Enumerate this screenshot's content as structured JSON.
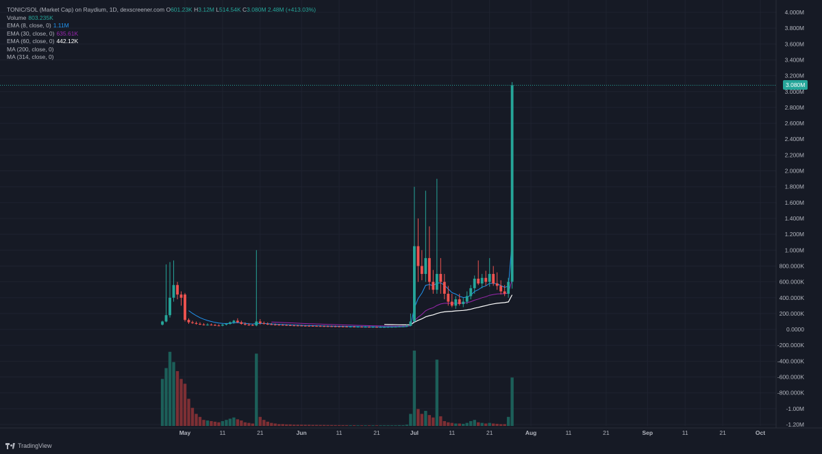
{
  "legend": {
    "title": "TONIC/SOL (Market Cap) on Raydium, 1D, dexscreener.com",
    "ohlc": [
      {
        "k": "O",
        "v": "601.23K"
      },
      {
        "k": "H",
        "v": "3.12M"
      },
      {
        "k": "L",
        "v": "514.54K"
      },
      {
        "k": "C",
        "v": "3.080M"
      }
    ],
    "change": "2.48M (+413.03%)",
    "indicators": [
      {
        "label": "Volume",
        "value": "803.235K",
        "color": "#26a69a"
      },
      {
        "label": "EMA (8, close, 0)",
        "value": "1.11M",
        "color": "#2196f3"
      },
      {
        "label": "EMA (30, close, 0)",
        "value": "635.61K",
        "color": "#9c27b0"
      },
      {
        "label": "EMA (60, close, 0)",
        "value": "442.12K",
        "color": "#ffffff"
      },
      {
        "label": "MA (200, close, 0)",
        "value": "",
        "color": "#b2b5be"
      },
      {
        "label": "MA (314, close, 0)",
        "value": "",
        "color": "#b2b5be"
      }
    ]
  },
  "last_price_tag": "3.080M",
  "brand": "TradingView",
  "colors": {
    "up": "#26a69a",
    "down": "#ef5350",
    "background": "#161a25",
    "grid": "#1f2330"
  },
  "chart_data": {
    "type": "candlestick",
    "y_unit": "market cap (USD)",
    "ylim": [
      -1200000,
      4000000
    ],
    "y_ticks": [
      "4.000M",
      "3.800M",
      "3.600M",
      "3.400M",
      "3.200M",
      "3.000M",
      "2.800M",
      "2.600M",
      "2.400M",
      "2.200M",
      "2.000M",
      "1.800M",
      "1.600M",
      "1.400M",
      "1.200M",
      "1.000M",
      "800.000K",
      "600.000K",
      "400.000K",
      "200.000K",
      "0.0000",
      "-200.000K",
      "-400.000K",
      "-600.000K",
      "-800.000K",
      "-1.00M",
      "-1.20M"
    ],
    "x_ticks": [
      {
        "label": "May",
        "date": "2024-05-01"
      },
      {
        "label": "11",
        "date": "2024-05-11"
      },
      {
        "label": "21",
        "date": "2024-05-21"
      },
      {
        "label": "Jun",
        "date": "2024-06-01"
      },
      {
        "label": "11",
        "date": "2024-06-11"
      },
      {
        "label": "21",
        "date": "2024-06-21"
      },
      {
        "label": "Jul",
        "date": "2024-07-01"
      },
      {
        "label": "11",
        "date": "2024-07-11"
      },
      {
        "label": "21",
        "date": "2024-07-21"
      },
      {
        "label": "Aug",
        "date": "2024-08-01"
      },
      {
        "label": "11",
        "date": "2024-08-11"
      },
      {
        "label": "21",
        "date": "2024-08-21"
      },
      {
        "label": "Sep",
        "date": "2024-09-01"
      },
      {
        "label": "11",
        "date": "2024-09-11"
      },
      {
        "label": "21",
        "date": "2024-09-21"
      },
      {
        "label": "Oct",
        "date": "2024-10-01"
      }
    ],
    "candles": [
      {
        "date": "2024-04-25",
        "o": 60000,
        "h": 110000,
        "l": 50000,
        "c": 100000,
        "v": 780000
      },
      {
        "date": "2024-04-26",
        "o": 100000,
        "h": 820000,
        "l": 90000,
        "c": 180000,
        "v": 960000
      },
      {
        "date": "2024-04-27",
        "o": 180000,
        "h": 850000,
        "l": 150000,
        "c": 400000,
        "v": 1230000
      },
      {
        "date": "2024-04-28",
        "o": 400000,
        "h": 870000,
        "l": 350000,
        "c": 560000,
        "v": 1060000
      },
      {
        "date": "2024-04-29",
        "o": 560000,
        "h": 600000,
        "l": 380000,
        "c": 440000,
        "v": 910000
      },
      {
        "date": "2024-04-30",
        "o": 440000,
        "h": 480000,
        "l": 300000,
        "c": 400000,
        "v": 780000
      },
      {
        "date": "2024-05-01",
        "o": 440000,
        "h": 460000,
        "l": 100000,
        "c": 120000,
        "v": 700000
      },
      {
        "date": "2024-05-02",
        "o": 120000,
        "h": 140000,
        "l": 70000,
        "c": 90000,
        "v": 450000
      },
      {
        "date": "2024-05-03",
        "o": 90000,
        "h": 110000,
        "l": 70000,
        "c": 80000,
        "v": 300000
      },
      {
        "date": "2024-05-04",
        "o": 80000,
        "h": 100000,
        "l": 60000,
        "c": 70000,
        "v": 200000
      },
      {
        "date": "2024-05-05",
        "o": 70000,
        "h": 90000,
        "l": 55000,
        "c": 62000,
        "v": 150000
      },
      {
        "date": "2024-05-06",
        "o": 62000,
        "h": 80000,
        "l": 50000,
        "c": 58000,
        "v": 100000
      },
      {
        "date": "2024-05-07",
        "o": 58000,
        "h": 78000,
        "l": 48000,
        "c": 60000,
        "v": 90000
      },
      {
        "date": "2024-05-08",
        "o": 60000,
        "h": 75000,
        "l": 50000,
        "c": 55000,
        "v": 80000
      },
      {
        "date": "2024-05-09",
        "o": 55000,
        "h": 70000,
        "l": 45000,
        "c": 50000,
        "v": 70000
      },
      {
        "date": "2024-05-10",
        "o": 50000,
        "h": 65000,
        "l": 42000,
        "c": 48000,
        "v": 60000
      },
      {
        "date": "2024-05-11",
        "o": 48000,
        "h": 70000,
        "l": 40000,
        "c": 60000,
        "v": 80000
      },
      {
        "date": "2024-05-12",
        "o": 60000,
        "h": 80000,
        "l": 50000,
        "c": 70000,
        "v": 100000
      },
      {
        "date": "2024-05-13",
        "o": 70000,
        "h": 100000,
        "l": 60000,
        "c": 90000,
        "v": 120000
      },
      {
        "date": "2024-05-14",
        "o": 90000,
        "h": 120000,
        "l": 70000,
        "c": 110000,
        "v": 140000
      },
      {
        "date": "2024-05-15",
        "o": 110000,
        "h": 140000,
        "l": 80000,
        "c": 90000,
        "v": 110000
      },
      {
        "date": "2024-05-16",
        "o": 90000,
        "h": 110000,
        "l": 60000,
        "c": 70000,
        "v": 90000
      },
      {
        "date": "2024-05-17",
        "o": 70000,
        "h": 90000,
        "l": 50000,
        "c": 60000,
        "v": 60000
      },
      {
        "date": "2024-05-18",
        "o": 60000,
        "h": 80000,
        "l": 45000,
        "c": 55000,
        "v": 50000
      },
      {
        "date": "2024-05-19",
        "o": 55000,
        "h": 70000,
        "l": 45000,
        "c": 50000,
        "v": 40000
      },
      {
        "date": "2024-05-20",
        "o": 50000,
        "h": 1000000,
        "l": 40000,
        "c": 100000,
        "v": 1200000
      },
      {
        "date": "2024-05-21",
        "o": 100000,
        "h": 130000,
        "l": 60000,
        "c": 80000,
        "v": 150000
      },
      {
        "date": "2024-05-22",
        "o": 80000,
        "h": 100000,
        "l": 60000,
        "c": 70000,
        "v": 100000
      },
      {
        "date": "2024-05-23",
        "o": 70000,
        "h": 90000,
        "l": 55000,
        "c": 65000,
        "v": 70000
      },
      {
        "date": "2024-05-24",
        "o": 65000,
        "h": 80000,
        "l": 55000,
        "c": 60000,
        "v": 50000
      },
      {
        "date": "2024-05-25",
        "o": 60000,
        "h": 75000,
        "l": 50000,
        "c": 58000,
        "v": 40000
      },
      {
        "date": "2024-05-26",
        "o": 58000,
        "h": 70000,
        "l": 50000,
        "c": 56000,
        "v": 30000
      },
      {
        "date": "2024-05-27",
        "o": 56000,
        "h": 68000,
        "l": 48000,
        "c": 55000,
        "v": 30000
      },
      {
        "date": "2024-05-28",
        "o": 55000,
        "h": 66000,
        "l": 46000,
        "c": 52000,
        "v": 25000
      },
      {
        "date": "2024-05-29",
        "o": 52000,
        "h": 64000,
        "l": 44000,
        "c": 50000,
        "v": 25000
      },
      {
        "date": "2024-05-30",
        "o": 50000,
        "h": 62000,
        "l": 42000,
        "c": 49000,
        "v": 20000
      },
      {
        "date": "2024-05-31",
        "o": 49000,
        "h": 60000,
        "l": 40000,
        "c": 48000,
        "v": 20000
      },
      {
        "date": "2024-06-01",
        "o": 48000,
        "h": 58000,
        "l": 40000,
        "c": 46000,
        "v": 20000
      },
      {
        "date": "2024-06-02",
        "o": 46000,
        "h": 56000,
        "l": 38000,
        "c": 45000,
        "v": 18000
      },
      {
        "date": "2024-06-03",
        "o": 45000,
        "h": 55000,
        "l": 37000,
        "c": 44000,
        "v": 18000
      },
      {
        "date": "2024-06-04",
        "o": 44000,
        "h": 54000,
        "l": 36000,
        "c": 43000,
        "v": 16000
      },
      {
        "date": "2024-06-05",
        "o": 43000,
        "h": 53000,
        "l": 35000,
        "c": 42000,
        "v": 16000
      },
      {
        "date": "2024-06-06",
        "o": 42000,
        "h": 52000,
        "l": 34000,
        "c": 41000,
        "v": 15000
      },
      {
        "date": "2024-06-07",
        "o": 41000,
        "h": 51000,
        "l": 33000,
        "c": 40000,
        "v": 15000
      },
      {
        "date": "2024-06-08",
        "o": 40000,
        "h": 50000,
        "l": 32000,
        "c": 39000,
        "v": 14000
      },
      {
        "date": "2024-06-09",
        "o": 39000,
        "h": 49000,
        "l": 31000,
        "c": 38000,
        "v": 14000
      },
      {
        "date": "2024-06-10",
        "o": 38000,
        "h": 48000,
        "l": 30000,
        "c": 37000,
        "v": 13000
      },
      {
        "date": "2024-06-11",
        "o": 37000,
        "h": 47000,
        "l": 30000,
        "c": 36000,
        "v": 13000
      },
      {
        "date": "2024-06-12",
        "o": 36000,
        "h": 46000,
        "l": 29000,
        "c": 35000,
        "v": 12000
      },
      {
        "date": "2024-06-13",
        "o": 35000,
        "h": 45000,
        "l": 28000,
        "c": 34000,
        "v": 12000
      },
      {
        "date": "2024-06-14",
        "o": 34000,
        "h": 44000,
        "l": 28000,
        "c": 34000,
        "v": 11000
      },
      {
        "date": "2024-06-15",
        "o": 34000,
        "h": 44000,
        "l": 27000,
        "c": 33000,
        "v": 11000
      },
      {
        "date": "2024-06-16",
        "o": 33000,
        "h": 43000,
        "l": 27000,
        "c": 33000,
        "v": 10000
      },
      {
        "date": "2024-06-17",
        "o": 33000,
        "h": 42000,
        "l": 26000,
        "c": 32000,
        "v": 10000
      },
      {
        "date": "2024-06-18",
        "o": 32000,
        "h": 42000,
        "l": 26000,
        "c": 32000,
        "v": 10000
      },
      {
        "date": "2024-06-19",
        "o": 32000,
        "h": 41000,
        "l": 25000,
        "c": 31000,
        "v": 10000
      },
      {
        "date": "2024-06-20",
        "o": 31000,
        "h": 41000,
        "l": 25000,
        "c": 31000,
        "v": 10000
      },
      {
        "date": "2024-06-21",
        "o": 31000,
        "h": 40000,
        "l": 24000,
        "c": 30000,
        "v": 10000
      },
      {
        "date": "2024-06-22",
        "o": 30000,
        "h": 40000,
        "l": 24000,
        "c": 30000,
        "v": 10000
      },
      {
        "date": "2024-06-23",
        "o": 30000,
        "h": 40000,
        "l": 24000,
        "c": 30000,
        "v": 10000
      },
      {
        "date": "2024-06-24",
        "o": 30000,
        "h": 40000,
        "l": 24000,
        "c": 31000,
        "v": 10000
      },
      {
        "date": "2024-06-25",
        "o": 31000,
        "h": 41000,
        "l": 25000,
        "c": 32000,
        "v": 10000
      },
      {
        "date": "2024-06-26",
        "o": 32000,
        "h": 42000,
        "l": 26000,
        "c": 33000,
        "v": 10000
      },
      {
        "date": "2024-06-27",
        "o": 33000,
        "h": 44000,
        "l": 27000,
        "c": 35000,
        "v": 12000
      },
      {
        "date": "2024-06-28",
        "o": 35000,
        "h": 46000,
        "l": 28000,
        "c": 37000,
        "v": 12000
      },
      {
        "date": "2024-06-29",
        "o": 37000,
        "h": 60000,
        "l": 30000,
        "c": 45000,
        "v": 20000
      },
      {
        "date": "2024-06-30",
        "o": 45000,
        "h": 200000,
        "l": 40000,
        "c": 100000,
        "v": 200000
      },
      {
        "date": "2024-07-01",
        "o": 100000,
        "h": 1800000,
        "l": 90000,
        "c": 1050000,
        "v": 1250000
      },
      {
        "date": "2024-07-02",
        "o": 1050000,
        "h": 1400000,
        "l": 600000,
        "c": 800000,
        "v": 280000
      },
      {
        "date": "2024-07-03",
        "o": 800000,
        "h": 1000000,
        "l": 620000,
        "c": 700000,
        "v": 200000
      },
      {
        "date": "2024-07-04",
        "o": 700000,
        "h": 1750000,
        "l": 600000,
        "c": 900000,
        "v": 250000
      },
      {
        "date": "2024-07-05",
        "o": 900000,
        "h": 1300000,
        "l": 500000,
        "c": 600000,
        "v": 180000
      },
      {
        "date": "2024-07-06",
        "o": 600000,
        "h": 750000,
        "l": 450000,
        "c": 500000,
        "v": 140000
      },
      {
        "date": "2024-07-07",
        "o": 500000,
        "h": 1900000,
        "l": 450000,
        "c": 700000,
        "v": 1100000
      },
      {
        "date": "2024-07-08",
        "o": 700000,
        "h": 900000,
        "l": 450000,
        "c": 600000,
        "v": 160000
      },
      {
        "date": "2024-07-09",
        "o": 600000,
        "h": 700000,
        "l": 380000,
        "c": 450000,
        "v": 80000
      },
      {
        "date": "2024-07-10",
        "o": 450000,
        "h": 550000,
        "l": 300000,
        "c": 350000,
        "v": 60000
      },
      {
        "date": "2024-07-11",
        "o": 350000,
        "h": 450000,
        "l": 280000,
        "c": 300000,
        "v": 50000
      },
      {
        "date": "2024-07-12",
        "o": 300000,
        "h": 420000,
        "l": 260000,
        "c": 380000,
        "v": 40000
      },
      {
        "date": "2024-07-13",
        "o": 380000,
        "h": 450000,
        "l": 300000,
        "c": 320000,
        "v": 40000
      },
      {
        "date": "2024-07-14",
        "o": 320000,
        "h": 400000,
        "l": 280000,
        "c": 350000,
        "v": 35000
      },
      {
        "date": "2024-07-15",
        "o": 350000,
        "h": 480000,
        "l": 320000,
        "c": 420000,
        "v": 50000
      },
      {
        "date": "2024-07-16",
        "o": 420000,
        "h": 560000,
        "l": 380000,
        "c": 520000,
        "v": 80000
      },
      {
        "date": "2024-07-17",
        "o": 520000,
        "h": 680000,
        "l": 450000,
        "c": 640000,
        "v": 100000
      },
      {
        "date": "2024-07-18",
        "o": 640000,
        "h": 870000,
        "l": 560000,
        "c": 580000,
        "v": 60000
      },
      {
        "date": "2024-07-19",
        "o": 580000,
        "h": 700000,
        "l": 520000,
        "c": 650000,
        "v": 50000
      },
      {
        "date": "2024-07-20",
        "o": 650000,
        "h": 740000,
        "l": 550000,
        "c": 600000,
        "v": 40000
      },
      {
        "date": "2024-07-21",
        "o": 600000,
        "h": 900000,
        "l": 540000,
        "c": 700000,
        "v": 50000
      },
      {
        "date": "2024-07-22",
        "o": 700000,
        "h": 800000,
        "l": 550000,
        "c": 580000,
        "v": 40000
      },
      {
        "date": "2024-07-23",
        "o": 580000,
        "h": 720000,
        "l": 500000,
        "c": 550000,
        "v": 35000
      },
      {
        "date": "2024-07-24",
        "o": 550000,
        "h": 620000,
        "l": 440000,
        "c": 480000,
        "v": 30000
      },
      {
        "date": "2024-07-25",
        "o": 480000,
        "h": 560000,
        "l": 420000,
        "c": 450000,
        "v": 30000
      },
      {
        "date": "2024-07-26",
        "o": 450000,
        "h": 650000,
        "l": 400000,
        "c": 600000,
        "v": 150000
      },
      {
        "date": "2024-07-27",
        "o": 601230,
        "h": 3120000,
        "l": 514540,
        "c": 3080000,
        "v": 803235
      }
    ]
  }
}
